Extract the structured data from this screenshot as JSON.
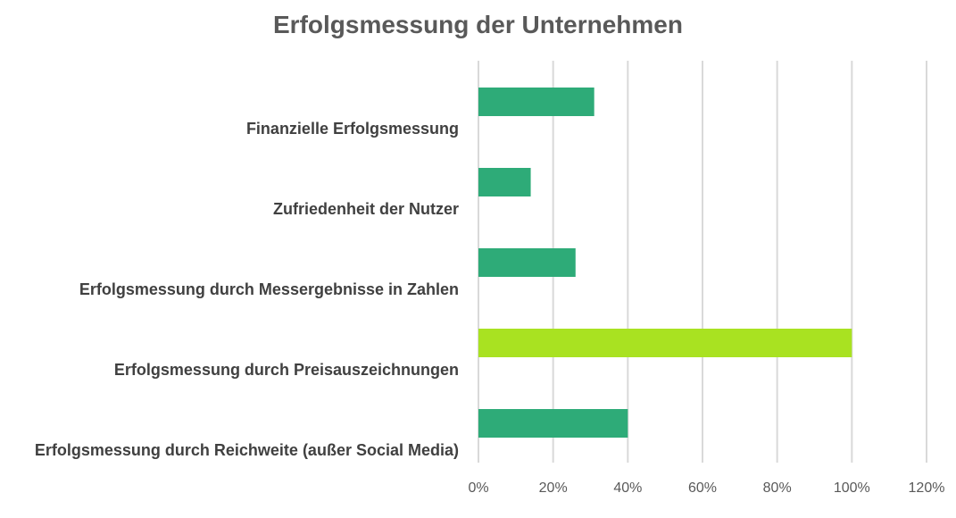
{
  "chart_data": {
    "type": "bar",
    "orientation": "horizontal",
    "title": "Erfolgsmessung der Unternehmen",
    "categories": [
      "Finanzielle Erfolgsmessung",
      "Zufriedenheit der Nutzer",
      "Erfolgsmessung durch Messergebnisse in Zahlen",
      "Erfolgsmessung durch Preisauszeichnungen",
      "Erfolgsmessung durch Reichweite (außer Social Media)"
    ],
    "values": [
      0.31,
      0.14,
      0.26,
      1.0,
      0.4
    ],
    "bar_colors": [
      "#2eab78",
      "#2eab78",
      "#2eab78",
      "#a9e221",
      "#2eab78"
    ],
    "xlim": [
      0,
      1.2
    ],
    "xticks": [
      0,
      0.2,
      0.4,
      0.6,
      0.8,
      1.0,
      1.2
    ],
    "xtick_labels": [
      "0%",
      "20%",
      "40%",
      "60%",
      "80%",
      "100%",
      "120%"
    ],
    "grid": "vertical",
    "gridline_color": "#d9d9d9",
    "legend": "none",
    "xlabel": "",
    "ylabel": ""
  }
}
